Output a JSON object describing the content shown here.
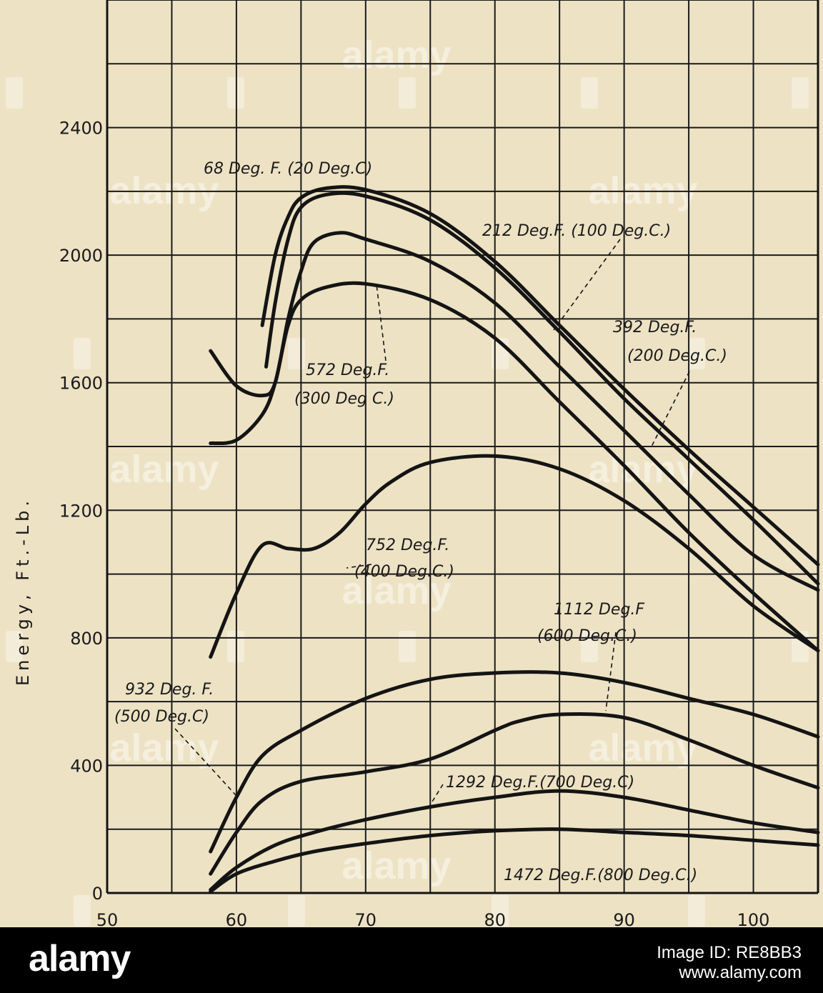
{
  "chart_data": {
    "type": "line",
    "title": "",
    "xlabel": "",
    "ylabel": "Energy, Ft.-Lb.",
    "xlim": [
      50,
      105
    ],
    "ylim": [
      0,
      2800
    ],
    "x_ticks": [
      "50",
      "60",
      "70",
      "80",
      "90",
      "100"
    ],
    "y_ticks": [
      "0",
      "400",
      "800",
      "1200",
      "1600",
      "2000",
      "2400"
    ],
    "grid": true,
    "series": [
      {
        "name": "68 Deg. F. (20 Deg.C)",
        "points": [
          [
            62,
            1780
          ],
          [
            63,
            2000
          ],
          [
            64,
            2120
          ],
          [
            65,
            2180
          ],
          [
            67,
            2210
          ],
          [
            70,
            2205
          ],
          [
            75,
            2130
          ],
          [
            80,
            1980
          ],
          [
            85,
            1780
          ],
          [
            90,
            1580
          ],
          [
            95,
            1390
          ],
          [
            100,
            1210
          ],
          [
            105,
            1030
          ]
        ]
      },
      {
        "name": "212 Deg.F. (100 Deg.C.)",
        "points": [
          [
            62.3,
            1650
          ],
          [
            63,
            1850
          ],
          [
            64,
            2050
          ],
          [
            65,
            2150
          ],
          [
            67,
            2190
          ],
          [
            70,
            2185
          ],
          [
            75,
            2110
          ],
          [
            80,
            1960
          ],
          [
            85,
            1760
          ],
          [
            90,
            1550
          ],
          [
            95,
            1360
          ],
          [
            100,
            1170
          ],
          [
            105,
            970
          ]
        ]
      },
      {
        "name": "392 Deg.F. (200 Deg.C.)",
        "points": [
          [
            58,
            1700
          ],
          [
            60,
            1590
          ],
          [
            62,
            1560
          ],
          [
            63,
            1600
          ],
          [
            64,
            1800
          ],
          [
            65,
            1950
          ],
          [
            66,
            2040
          ],
          [
            68,
            2070
          ],
          [
            70,
            2050
          ],
          [
            75,
            1980
          ],
          [
            80,
            1850
          ],
          [
            85,
            1650
          ],
          [
            90,
            1450
          ],
          [
            95,
            1250
          ],
          [
            100,
            1060
          ],
          [
            105,
            950
          ]
        ]
      },
      {
        "name": "572 Deg.F. (300 Deg C.)",
        "points": [
          [
            58,
            1410
          ],
          [
            60,
            1420
          ],
          [
            62,
            1500
          ],
          [
            63,
            1600
          ],
          [
            64,
            1780
          ],
          [
            65,
            1860
          ],
          [
            67,
            1900
          ],
          [
            70,
            1910
          ],
          [
            75,
            1860
          ],
          [
            80,
            1740
          ],
          [
            85,
            1540
          ],
          [
            90,
            1340
          ],
          [
            95,
            1130
          ],
          [
            100,
            940
          ],
          [
            105,
            760
          ]
        ]
      },
      {
        "name": "752 Deg.F. (400 Deg.C.)",
        "points": [
          [
            58,
            740
          ],
          [
            60,
            940
          ],
          [
            62,
            1090
          ],
          [
            64,
            1080
          ],
          [
            66,
            1080
          ],
          [
            68,
            1130
          ],
          [
            70,
            1220
          ],
          [
            72,
            1290
          ],
          [
            75,
            1350
          ],
          [
            80,
            1370
          ],
          [
            85,
            1330
          ],
          [
            90,
            1230
          ],
          [
            95,
            1080
          ],
          [
            100,
            900
          ],
          [
            105,
            760
          ]
        ]
      },
      {
        "name": "932 Deg. F. (500 Deg.C)",
        "points": [
          [
            58,
            130
          ],
          [
            60,
            300
          ],
          [
            62,
            430
          ],
          [
            65,
            510
          ],
          [
            70,
            610
          ],
          [
            75,
            670
          ],
          [
            80,
            690
          ],
          [
            85,
            690
          ],
          [
            90,
            660
          ],
          [
            95,
            610
          ],
          [
            100,
            560
          ],
          [
            105,
            490
          ]
        ]
      },
      {
        "name": "1112 Deg.F (600 Deg.C.)",
        "points": [
          [
            58,
            60
          ],
          [
            60,
            190
          ],
          [
            62,
            290
          ],
          [
            65,
            350
          ],
          [
            70,
            380
          ],
          [
            75,
            420
          ],
          [
            80,
            510
          ],
          [
            82,
            540
          ],
          [
            85,
            560
          ],
          [
            90,
            550
          ],
          [
            95,
            480
          ],
          [
            100,
            400
          ],
          [
            105,
            330
          ]
        ]
      },
      {
        "name": "1292 Deg.F.(700 Deg.C)",
        "points": [
          [
            58,
            10
          ],
          [
            60,
            80
          ],
          [
            63,
            150
          ],
          [
            66,
            190
          ],
          [
            70,
            230
          ],
          [
            75,
            270
          ],
          [
            80,
            300
          ],
          [
            85,
            320
          ],
          [
            90,
            300
          ],
          [
            95,
            260
          ],
          [
            100,
            220
          ],
          [
            105,
            190
          ]
        ]
      },
      {
        "name": "1472 Deg.F.(800 Deg.C.)",
        "points": [
          [
            58,
            5
          ],
          [
            60,
            60
          ],
          [
            63,
            100
          ],
          [
            66,
            130
          ],
          [
            70,
            155
          ],
          [
            75,
            180
          ],
          [
            80,
            195
          ],
          [
            85,
            200
          ],
          [
            90,
            190
          ],
          [
            95,
            180
          ],
          [
            100,
            165
          ],
          [
            105,
            150
          ]
        ]
      }
    ],
    "annotations": {
      "c68": "68 Deg. F. (20 Deg.C)",
      "c212": "212 Deg.F. (100 Deg.C.)",
      "c392a": "392 Deg.F.",
      "c392b": "(200 Deg.C.)",
      "c572a": "572 Deg.F.",
      "c572b": "(300 Deg C.)",
      "c752a": "752 Deg.F.",
      "c752b": "(400 Deg.C.)",
      "c1112a": "1112 Deg.F",
      "c1112b": "(600 Deg.C.)",
      "c932a": "932 Deg. F.",
      "c932b": "(500 Deg.C)",
      "c1292": "1292 Deg.F.(700 Deg.C)",
      "c1472": "1472 Deg.F.(800 Deg.C.)"
    }
  },
  "watermark": {
    "text": "alamy",
    "color": "#ffffff"
  },
  "footer": {
    "brand": "alamy",
    "image_id": "Image ID: RE8BB3",
    "url": "www.alamy.com"
  }
}
